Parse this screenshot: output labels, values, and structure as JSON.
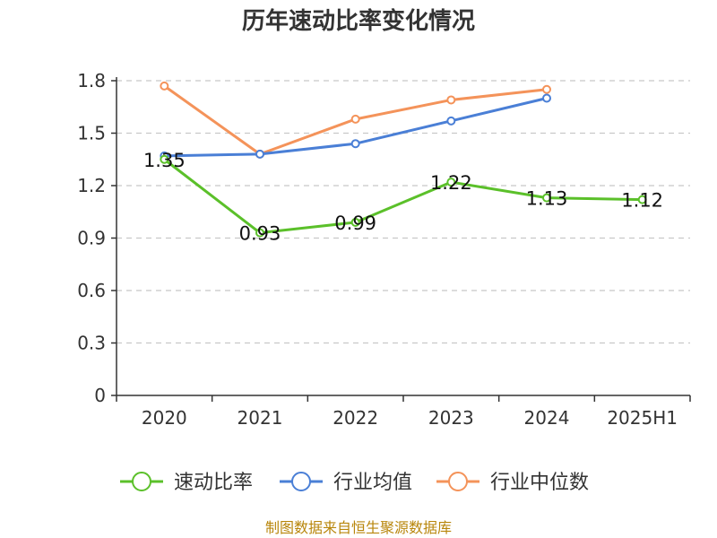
{
  "chart_data": {
    "type": "line",
    "title": "历年速动比率变化情况",
    "categories": [
      "2020",
      "2021",
      "2022",
      "2023",
      "2024",
      "2025H1"
    ],
    "ylim": [
      0,
      1.8
    ],
    "yticks": [
      "0",
      "0.3",
      "0.6",
      "0.9",
      "1.2",
      "1.5",
      "1.8"
    ],
    "grid": true,
    "legend_position": "bottom",
    "series": [
      {
        "name": "速动比率",
        "color": "#5bc02a",
        "values": [
          1.35,
          0.93,
          0.99,
          1.22,
          1.13,
          1.12
        ],
        "labels": [
          "1.35",
          "0.93",
          "0.99",
          "1.22",
          "1.13",
          "1.12"
        ]
      },
      {
        "name": "行业均值",
        "color": "#4a7fd6",
        "values": [
          1.37,
          1.38,
          1.44,
          1.57,
          1.7,
          null
        ]
      },
      {
        "name": "行业中位数",
        "color": "#f4935a",
        "values": [
          1.77,
          1.38,
          1.58,
          1.69,
          1.75,
          null
        ]
      }
    ],
    "source": "制图数据来自恒生聚源数据库"
  }
}
